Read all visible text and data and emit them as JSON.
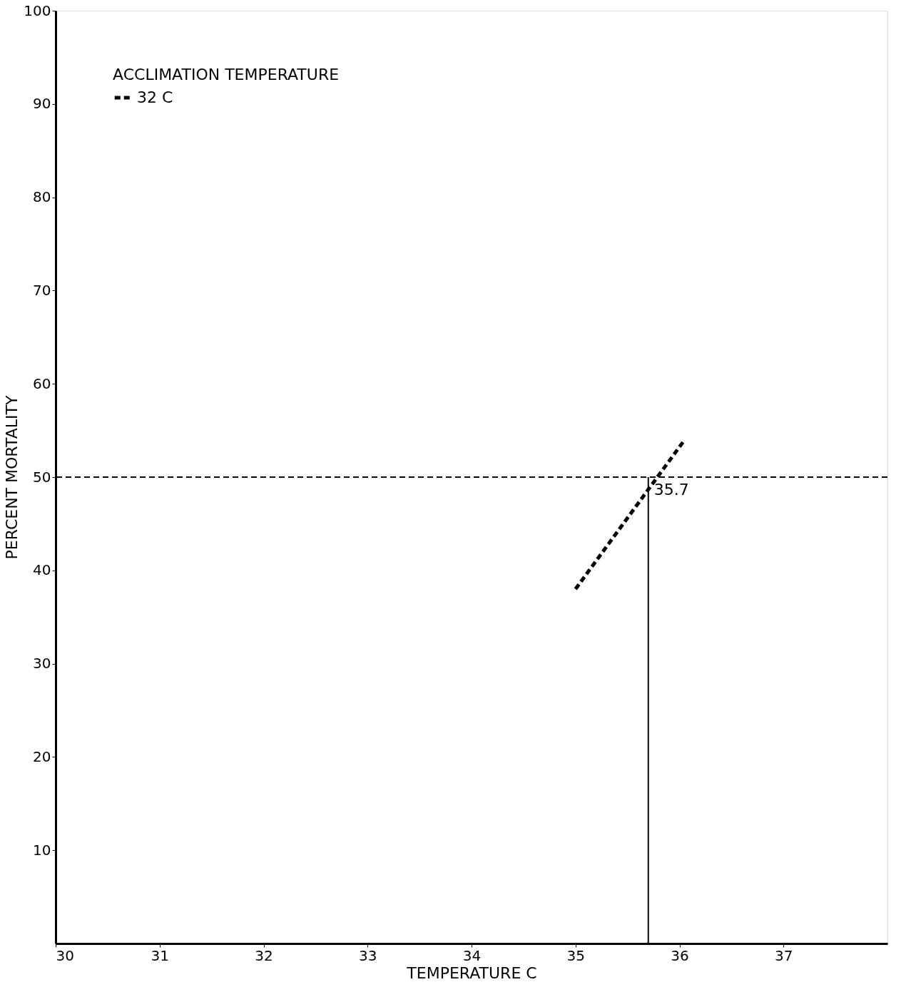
{
  "chart_data": {
    "type": "line",
    "xlabel": "TEMPERATURE  C",
    "ylabel": "PERCENT  MORTALITY",
    "legend_title": "ACCLIMATION  TEMPERATURE",
    "xlim": [
      30,
      38
    ],
    "xticks": [
      30,
      31,
      32,
      33,
      34,
      35,
      36,
      37
    ],
    "ylim": [
      0,
      100
    ],
    "yticks": [
      10,
      20,
      30,
      40,
      50,
      60,
      70,
      80,
      90,
      100
    ],
    "series": [
      {
        "name": "32 C",
        "color": "#000000",
        "x": [
          35.0,
          36.05
        ],
        "values": [
          38,
          54
        ],
        "line_style": "dashed"
      },
      {
        "color": "#000000",
        "x": [
          35.7,
          35.7
        ],
        "values": [
          50,
          0
        ],
        "line_style": "solid"
      }
    ],
    "ref_lines": [
      {
        "axis": "y",
        "value": 50,
        "line_style": "dashed",
        "color": "#000000"
      }
    ],
    "annotations": [
      {
        "text": "35.7",
        "x": 35.7,
        "y": 50
      }
    ],
    "grid": false,
    "legend": "top left"
  }
}
